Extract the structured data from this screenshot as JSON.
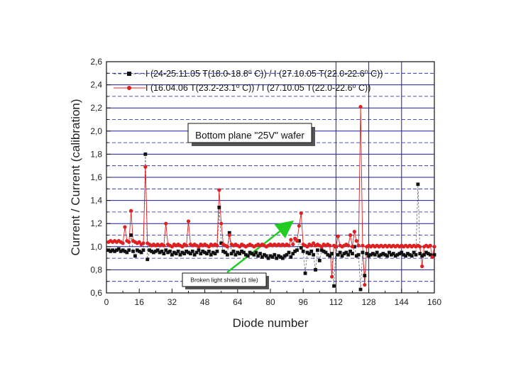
{
  "chart_data": {
    "type": "scatter",
    "xlabel": "Diode number",
    "ylabel": "Current / Current (calibration)",
    "xlim": [
      0,
      160
    ],
    "ylim": [
      0.6,
      2.6
    ],
    "xticks": [
      0,
      16,
      32,
      48,
      64,
      80,
      96,
      112,
      128,
      144,
      160
    ],
    "yticks": [
      "0,6",
      "0,8",
      "1,0",
      "1,2",
      "1,4",
      "1,6",
      "1,8",
      "2,0",
      "2,2",
      "2,4",
      "2,6"
    ],
    "vertical_lines": [
      112,
      128,
      144
    ],
    "legend_position": "top",
    "annotations": {
      "box_label": "Bottom plane \"25V\" wafer",
      "arrow_label": "Broken light shield (1 tile)"
    },
    "colors": {
      "black_series": "#111111",
      "red_series": "#e02020",
      "grid": "#1a1aa0",
      "arrow": "#22cc22"
    },
    "series": [
      {
        "name": "I (24-25.11.05 T(18.0-18.8⁰ C)) / I (27.10.05 T(22.0-22.6⁰ C))",
        "legend_label": "I (24-25.11.05 T(18.0-18.8⁰ C)) / I (27.10.05 T(22.0-22.6⁰ C))",
        "marker": "square",
        "color": "#111111",
        "x": [
          1,
          2,
          3,
          4,
          5,
          6,
          7,
          8,
          9,
          10,
          11,
          12,
          13,
          14,
          15,
          16,
          17,
          18,
          19,
          20,
          21,
          22,
          23,
          24,
          25,
          26,
          27,
          28,
          29,
          30,
          31,
          32,
          33,
          34,
          35,
          36,
          37,
          38,
          39,
          40,
          41,
          42,
          43,
          44,
          45,
          46,
          47,
          48,
          49,
          50,
          51,
          52,
          53,
          54,
          55,
          56,
          57,
          58,
          59,
          60,
          61,
          62,
          63,
          64,
          65,
          66,
          67,
          68,
          69,
          70,
          71,
          72,
          73,
          74,
          75,
          76,
          77,
          78,
          79,
          80,
          81,
          82,
          83,
          84,
          85,
          86,
          87,
          88,
          89,
          90,
          91,
          92,
          93,
          94,
          95,
          96,
          97,
          98,
          99,
          100,
          101,
          102,
          103,
          104,
          105,
          106,
          107,
          108,
          109,
          110,
          111,
          112,
          113,
          114,
          115,
          116,
          117,
          118,
          119,
          120,
          121,
          122,
          123,
          124,
          125,
          126,
          127,
          128,
          129,
          130,
          131,
          132,
          133,
          134,
          135,
          136,
          137,
          138,
          139,
          140,
          141,
          142,
          143,
          144,
          145,
          146,
          147,
          148,
          149,
          150,
          151,
          152,
          153,
          154,
          155,
          156,
          157,
          158,
          159,
          160
        ],
        "y": [
          0.97,
          0.96,
          0.97,
          0.96,
          0.97,
          0.98,
          0.96,
          0.97,
          0.96,
          0.95,
          0.97,
          1.1,
          0.96,
          0.92,
          0.97,
          0.96,
          0.95,
          0.97,
          1.8,
          0.89,
          0.97,
          0.96,
          0.95,
          0.96,
          0.97,
          0.95,
          0.96,
          0.94,
          0.97,
          0.95,
          0.96,
          0.93,
          0.95,
          0.94,
          0.96,
          0.93,
          0.95,
          0.94,
          0.96,
          0.95,
          0.94,
          0.96,
          0.93,
          0.95,
          0.97,
          0.94,
          0.96,
          0.95,
          0.94,
          0.96,
          0.93,
          0.95,
          0.94,
          0.96,
          1.34,
          1.03,
          0.96,
          0.95,
          0.93,
          1.12,
          0.94,
          0.96,
          0.93,
          0.95,
          0.94,
          0.96,
          0.95,
          0.93,
          0.92,
          0.95,
          0.94,
          0.93,
          0.95,
          0.92,
          0.94,
          0.91,
          0.93,
          0.92,
          0.9,
          0.92,
          0.91,
          0.93,
          0.9,
          0.92,
          0.91,
          0.9,
          0.92,
          0.93,
          0.95,
          0.91,
          0.94,
          0.96,
          0.97,
          1.05,
          0.99,
          0.96,
          0.77,
          0.95,
          0.94,
          0.96,
          0.93,
          0.8,
          0.97,
          0.88,
          0.97,
          0.96,
          0.95,
          0.93,
          0.92,
          0.94,
          0.66,
          1.0,
          0.93,
          0.95,
          0.92,
          0.94,
          0.95,
          0.93,
          0.96,
          0.94,
          1.0,
          0.92,
          0.93,
          0.63,
          0.95,
          0.75,
          0.94,
          0.92,
          0.93,
          0.94,
          0.93,
          0.95,
          0.92,
          0.93,
          0.94,
          0.93,
          0.92,
          0.95,
          0.93,
          0.94,
          0.92,
          0.93,
          0.94,
          0.95,
          0.93,
          0.92,
          0.94,
          0.93,
          0.92,
          0.95,
          0.93,
          1.54,
          0.94,
          0.92,
          0.93,
          0.95,
          0.94,
          0.93,
          0.92,
          0.93
        ]
      },
      {
        "name": "I (16.04.06 T(23.2-23.1⁰ C)) / I (27.10.05 T(22.0-22.6⁰ C))",
        "legend_label": "I (16.04.06 T(23.2-23.1⁰ C)) / I (27.10.05 T(22.0-22.6⁰ C))",
        "marker": "circle",
        "color": "#e02020",
        "x": [
          1,
          2,
          3,
          4,
          5,
          6,
          7,
          8,
          9,
          10,
          11,
          12,
          13,
          14,
          15,
          16,
          17,
          18,
          19,
          20,
          21,
          22,
          23,
          24,
          25,
          26,
          27,
          28,
          29,
          30,
          31,
          32,
          33,
          34,
          35,
          36,
          37,
          38,
          39,
          40,
          41,
          42,
          43,
          44,
          45,
          46,
          47,
          48,
          49,
          50,
          51,
          52,
          53,
          54,
          55,
          56,
          57,
          58,
          59,
          60,
          61,
          62,
          63,
          64,
          65,
          66,
          67,
          68,
          69,
          70,
          71,
          72,
          73,
          74,
          75,
          76,
          77,
          78,
          79,
          80,
          81,
          82,
          83,
          84,
          85,
          86,
          87,
          88,
          89,
          90,
          91,
          92,
          93,
          94,
          95,
          96,
          97,
          98,
          99,
          100,
          101,
          102,
          103,
          104,
          105,
          106,
          107,
          108,
          109,
          110,
          111,
          112,
          113,
          114,
          115,
          116,
          117,
          118,
          119,
          120,
          121,
          122,
          123,
          124,
          125,
          126,
          127,
          128,
          129,
          130,
          131,
          132,
          133,
          134,
          135,
          136,
          137,
          138,
          139,
          140,
          141,
          142,
          143,
          144,
          145,
          146,
          147,
          148,
          149,
          150,
          151,
          152,
          153,
          154,
          155,
          156,
          157,
          158,
          159,
          160
        ],
        "y": [
          1.04,
          1.05,
          1.04,
          1.05,
          1.04,
          1.05,
          1.04,
          1.03,
          1.17,
          1.05,
          1.04,
          1.31,
          1.05,
          1.04,
          1.03,
          1.04,
          1.02,
          1.03,
          1.69,
          1.03,
          1.02,
          1.01,
          1.02,
          1.01,
          1.02,
          1.01,
          1.02,
          1.01,
          1.2,
          1.02,
          1.01,
          1.0,
          1.02,
          1.01,
          1.02,
          1.01,
          1.0,
          1.02,
          1.01,
          1.22,
          1.02,
          1.01,
          1.02,
          1.01,
          1.0,
          1.02,
          1.01,
          1.02,
          1.01,
          1.0,
          1.02,
          1.01,
          1.02,
          1.01,
          1.49,
          1.2,
          1.02,
          1.01,
          1.0,
          1.1,
          1.02,
          1.01,
          1.02,
          1.01,
          1.0,
          1.02,
          1.01,
          1.0,
          1.01,
          1.02,
          1.01,
          1.0,
          1.01,
          1.02,
          1.01,
          1.02,
          1.01,
          1.0,
          1.01,
          1.02,
          1.01,
          1.02,
          1.01,
          1.02,
          1.01,
          1.02,
          1.01,
          1.02,
          1.01,
          1.06,
          1.02,
          1.07,
          1.05,
          1.18,
          1.29,
          1.02,
          1.01,
          1.0,
          1.02,
          1.01,
          1.03,
          1.01,
          1.02,
          1.01,
          1.0,
          1.02,
          1.01,
          1.02,
          1.01,
          0.74,
          1.01,
          1.0,
          1.09,
          1.01,
          1.0,
          1.01,
          1.02,
          1.01,
          1.1,
          1.0,
          1.13,
          1.05,
          1.01,
          2.21,
          1.01,
          0.67,
          1.0,
          1.01,
          1.0,
          1.01,
          1.0,
          1.01,
          1.0,
          1.01,
          1.0,
          1.01,
          1.0,
          1.01,
          1.0,
          1.01,
          1.0,
          1.01,
          1.0,
          1.01,
          1.0,
          1.01,
          1.0,
          1.01,
          1.0,
          1.01,
          1.0,
          1.01,
          1.0,
          0.83,
          1.0,
          1.01,
          1.0,
          1.01,
          0.91,
          1.0
        ]
      }
    ]
  }
}
